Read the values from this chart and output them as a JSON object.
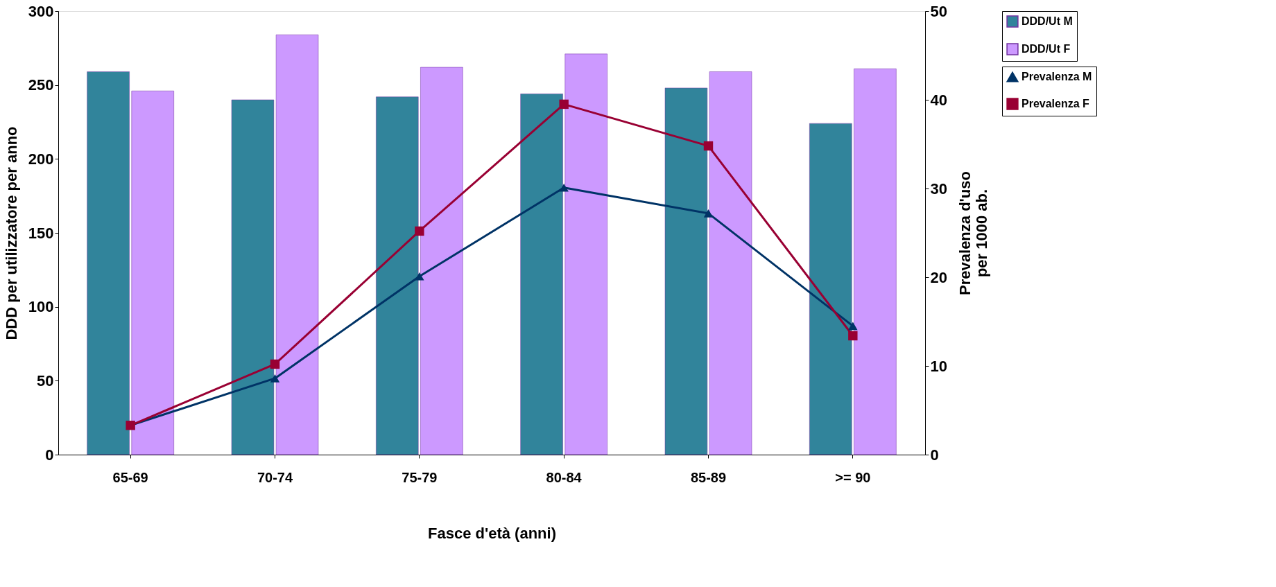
{
  "chart_data": {
    "type": "bar",
    "xlabel": "Fasce d'età (anni)",
    "ylabel": "DDD per utilizzatore per anno",
    "y2label": "Prevalenza d'uso\nper 1000 ab.",
    "categories": [
      "65-69",
      "70-74",
      "75-79",
      "80-84",
      "85-89",
      ">= 90"
    ],
    "series": [
      {
        "name": "DDD/Ut M",
        "color": "#31849b",
        "values": [
          259,
          240,
          242,
          244,
          248,
          224
        ]
      },
      {
        "name": "DDD/Ut F",
        "color": "#cc99ff",
        "values": [
          246,
          284,
          262,
          271,
          259,
          261
        ]
      },
      {
        "name": "Prevalenza M",
        "type": "line",
        "axis": "y2",
        "marker": "triangle",
        "color": "#003366",
        "values": [
          3.3,
          8.6,
          20.1,
          30.1,
          27.2,
          14.5
        ]
      },
      {
        "name": "Prevalenza F",
        "type": "line",
        "axis": "y2",
        "marker": "square",
        "color": "#990033",
        "values": [
          3.3,
          10.2,
          25.2,
          39.5,
          34.8,
          13.4
        ]
      }
    ],
    "ylim": [
      0,
      300
    ],
    "yticks": [
      0,
      50,
      100,
      150,
      200,
      250,
      300
    ],
    "y2lim": [
      0,
      50
    ],
    "y2ticks": [
      0,
      10,
      20,
      30,
      40,
      50
    ],
    "grid": false,
    "legend": "right"
  }
}
